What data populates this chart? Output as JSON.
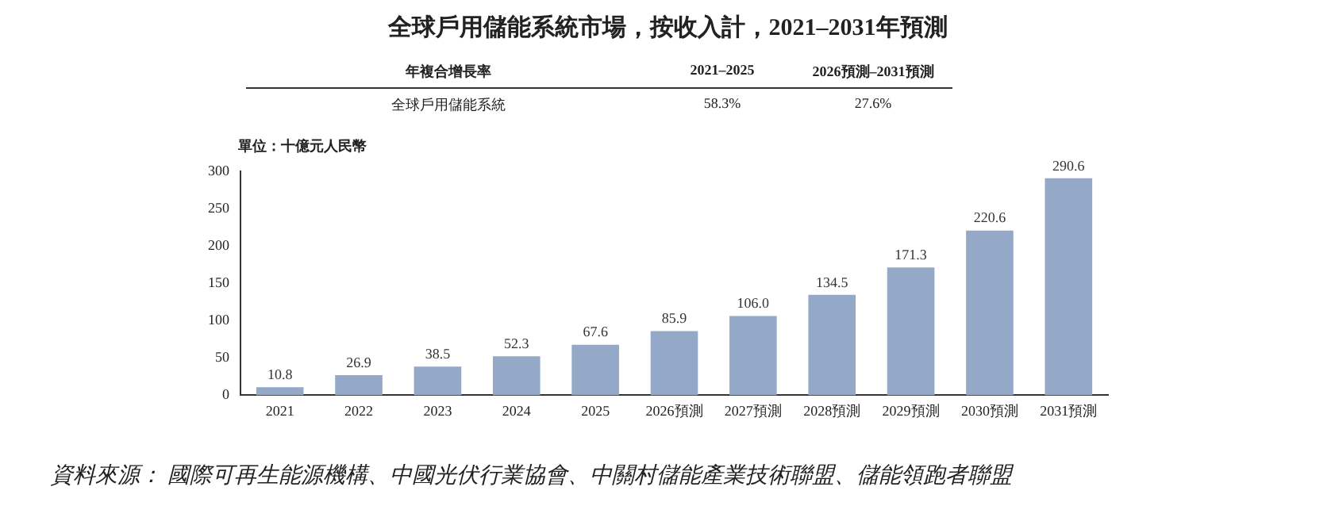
{
  "chart_data": {
    "type": "bar",
    "title": "全球戶用儲能系統市場，按收入計，2021–2031年預測",
    "ylabel": "單位：十億元人民幣",
    "categories": [
      "2021",
      "2022",
      "2023",
      "2024",
      "2025",
      "2026預測",
      "2027預測",
      "2028預測",
      "2029預測",
      "2030預測",
      "2031預測"
    ],
    "values": [
      10.8,
      26.9,
      38.5,
      52.3,
      67.6,
      85.9,
      106.0,
      134.5,
      171.3,
      220.6,
      290.6
    ],
    "value_labels": [
      "10.8",
      "26.9",
      "38.5",
      "52.3",
      "67.6",
      "85.9",
      "106.0",
      "134.5",
      "171.3",
      "220.6",
      "290.6"
    ],
    "color": "#94a9c8",
    "ylim": [
      0,
      300
    ],
    "yticks": [
      0,
      50,
      100,
      150,
      200,
      250,
      300
    ],
    "grid": false,
    "legend": false,
    "annotations": [
      "年複合增長率",
      "2021–2025",
      "2026預測–2031預測",
      "全球戶用儲能系統",
      "58.3%",
      "27.6%",
      "資料來源： 國際可再生能源機構、中國光伏行業協會、中關村儲能產業技術聯盟、儲能領跑者聯盟"
    ]
  }
}
